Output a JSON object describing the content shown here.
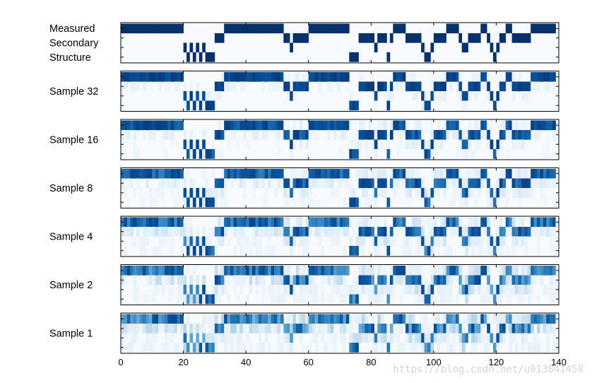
{
  "chart_data": {
    "type": "heatmap",
    "title": "",
    "xlabel": "",
    "ylabel": "",
    "xlim": [
      0,
      140
    ],
    "x_ticks": [
      0,
      20,
      40,
      60,
      80,
      100,
      120,
      140
    ],
    "n_positions": 140,
    "n_states": 4,
    "colormap": "Blues",
    "colors": {
      "low": "#f7fbff",
      "high": "#08306b",
      "frame": "#000000"
    },
    "grid": false,
    "legend": "none",
    "measured_states": [
      0,
      0,
      0,
      0,
      0,
      0,
      0,
      0,
      0,
      0,
      0,
      0,
      0,
      0,
      0,
      0,
      0,
      0,
      0,
      0,
      2,
      3,
      2,
      3,
      2,
      3,
      2,
      3,
      3,
      3,
      1,
      1,
      1,
      0,
      0,
      0,
      0,
      0,
      0,
      0,
      0,
      0,
      0,
      0,
      0,
      0,
      0,
      0,
      0,
      0,
      0,
      0,
      1,
      1,
      2,
      1,
      1,
      1,
      1,
      1,
      0,
      0,
      0,
      0,
      0,
      0,
      0,
      0,
      0,
      0,
      0,
      0,
      0,
      3,
      3,
      3,
      1,
      1,
      1,
      1,
      1,
      2,
      1,
      1,
      1,
      3,
      1,
      0,
      0,
      0,
      0,
      1,
      1,
      1,
      1,
      1,
      2,
      3,
      3,
      2,
      1,
      1,
      1,
      1,
      0,
      0,
      0,
      0,
      1,
      2,
      2,
      1,
      1,
      1,
      1,
      0,
      0,
      1,
      2,
      3,
      2,
      1,
      1,
      0,
      0,
      1,
      1,
      1,
      1,
      1,
      1,
      0,
      0,
      0,
      0,
      0,
      0,
      0,
      0
    ],
    "panels": [
      {
        "label": "Measured\nSecondary\nStructure",
        "kind": "measured",
        "noise": 0.0
      },
      {
        "label": "Sample 32",
        "kind": "predicted",
        "noise": 0.1
      },
      {
        "label": "Sample 16",
        "kind": "predicted",
        "noise": 0.14
      },
      {
        "label": "Sample 8",
        "kind": "predicted",
        "noise": 0.17
      },
      {
        "label": "Sample 4",
        "kind": "predicted",
        "noise": 0.2
      },
      {
        "label": "Sample 2",
        "kind": "predicted",
        "noise": 0.23
      },
      {
        "label": "Sample 1",
        "kind": "predicted",
        "noise": 0.26
      }
    ]
  },
  "watermark": "https://blog.csdn.net/u013841458"
}
